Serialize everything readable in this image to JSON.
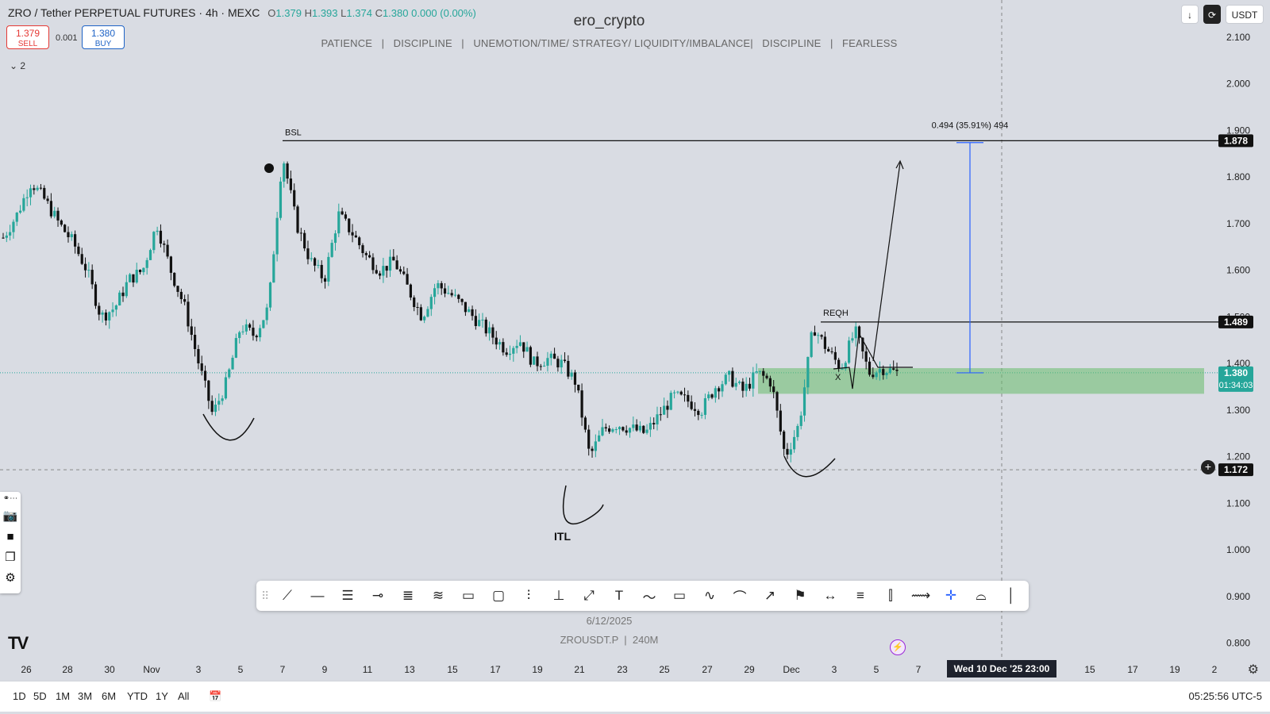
{
  "header": {
    "title": "ZRO / Tether PERPETUAL FUTURES · 4h · MEXC",
    "open_label": "O",
    "open": "1.379",
    "high_label": "H",
    "high": "1.393",
    "low_label": "L",
    "low": "1.374",
    "close_label": "C",
    "close": "1.380",
    "change": "0.000 (0.00%)"
  },
  "trade": {
    "sell_price": "1.379",
    "sell_label": "SELL",
    "buy_price": "1.380",
    "buy_label": "BUY",
    "spread": "0.001"
  },
  "indicators_toggle": "2",
  "watermark": {
    "author": "ero_crypto",
    "motto": "PATIENCE   |   DISCIPLINE   |   UNEMOTION/TIME/ STRATEGY/ LIQUIDITY/IMBALANCE|   DISCIPLINE   |   FEARLESS",
    "date": "6/12/2025",
    "symbol": "ZROUSDT.P  |  240M"
  },
  "top_right": {
    "currency": "USDT"
  },
  "bottom": {
    "ranges": [
      "1D",
      "5D",
      "1M",
      "3M",
      "6M",
      "YTD",
      "1Y",
      "All"
    ],
    "clock": "05:25:56 UTC-5"
  },
  "colors": {
    "bg": "#d9dce3",
    "up": "#26a69a",
    "down": "#111111",
    "zone": "#66bb6a",
    "measure": "#2962ff",
    "level": "#111111"
  },
  "chart_data": {
    "type": "candlestick",
    "ylim": [
      0.75,
      2.18
    ],
    "y_ticks": [
      "2.100",
      "2.000",
      "1.900",
      "1.800",
      "1.700",
      "1.600",
      "1.500",
      "1.400",
      "1.300",
      "1.200",
      "1.100",
      "1.000",
      "0.900",
      "0.800"
    ],
    "x_ticks": [
      "26",
      "28",
      "30",
      "Nov",
      "3",
      "5",
      "7",
      "9",
      "11",
      "13",
      "15",
      "17",
      "19",
      "21",
      "23",
      "25",
      "27",
      "29",
      "Dec",
      "3",
      "5",
      "7",
      "Wed 10 Dec '25   23:00",
      "15",
      "17",
      "19",
      "2"
    ],
    "crosshair_time": "Wed 10 Dec '25   23:00",
    "price_labels": [
      {
        "price": 1.878,
        "text": "1.878"
      },
      {
        "price": 1.489,
        "text": "1.489"
      },
      {
        "price": 1.38,
        "text": "1.380",
        "countdown": "01:34:03"
      },
      {
        "price": 1.172,
        "text": "1.172"
      }
    ],
    "levels": [
      {
        "name": "BSL",
        "price": 1.878
      },
      {
        "name": "REQH",
        "price": 1.489
      }
    ],
    "zone": {
      "from": 1.335,
      "to": 1.39
    },
    "measure": {
      "text": "0.494 (35.91%) 494",
      "from": 1.38,
      "to": 1.874
    },
    "annotations": [
      "ITL",
      "X"
    ],
    "path": [
      [
        1.67,
        1.72,
        1.79,
        1.75,
        1.7,
        1.66,
        1.6,
        1.5,
        1.52,
        1.58,
        1.6,
        1.7,
        1.6,
        1.52,
        1.4,
        1.29,
        1.36,
        1.48,
        1.46,
        1.52,
        1.85,
        1.7,
        1.62,
        1.58,
        1.72,
        1.68,
        1.63,
        1.6,
        1.62,
        1.56,
        1.5,
        1.57,
        1.55,
        1.52,
        1.49,
        1.46,
        1.43,
        1.45,
        1.4,
        1.41,
        1.4,
        1.36,
        1.2,
        1.26,
        1.27,
        1.26,
        1.25,
        1.29,
        1.33,
        1.32,
        1.3,
        1.35,
        1.37,
        1.34,
        1.38,
        1.36,
        1.2,
        1.27,
        1.48,
        1.43,
        1.39,
        1.47,
        1.38,
        1.39,
        1.38
      ]
    ],
    "candles": 262
  }
}
